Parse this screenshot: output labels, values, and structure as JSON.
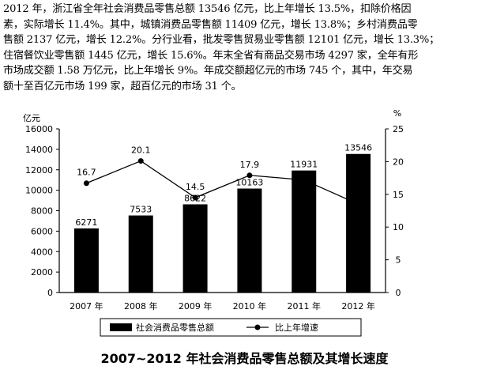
{
  "paragraph": [
    "2012 年，浙江省全年社会消费品零售总额 13546 亿元，比上年增长 13.5%，扣除价格因",
    "素，实际增长 11.4%。其中，城镇消费品零售额 11409 亿元，增长 13.8%；乡村消费品零",
    "售额 2137 亿元，增长 12.2%。分行业看，批发零售贸易业零售额 12101 亿元，增长 13.3%；",
    "住宿餐饮业零售额 1445 亿元，增长 15.6%。年末全省有商品交易市场 4297 家，全年有形",
    "市场成交额 1.58 万亿元，比上年增长 9%。年成交额超亿元的市场 745 个，其中，年交易",
    "额十至百亿元市场 199 家，超百亿元的市场 31 个。"
  ],
  "chart_data": {
    "type": "bar",
    "title": "2007~2012 年社会消费品零售总额及其增长速度",
    "categories": [
      "2007 年",
      "2008 年",
      "2009 年",
      "2010 年",
      "2011 年",
      "2012 年"
    ],
    "left_axis": {
      "unit": "亿元",
      "ylim": [
        0,
        16000
      ],
      "ticks": [
        0,
        2000,
        4000,
        6000,
        8000,
        10000,
        12000,
        14000,
        16000
      ]
    },
    "right_axis": {
      "unit": "%",
      "ylim": [
        0,
        25
      ],
      "ticks": [
        0,
        5,
        10,
        15,
        20,
        25
      ]
    },
    "series": [
      {
        "name": "社会消费品零售总额",
        "kind": "bar",
        "axis": "left",
        "color": "#000000",
        "values": [
          6271,
          7533,
          8622,
          10163,
          11931,
          13546
        ],
        "labels": [
          "6271",
          "7533",
          "8622",
          "10163",
          "11931",
          "13546"
        ]
      },
      {
        "name": "比上年增速",
        "kind": "line",
        "axis": "right",
        "color": "#000000",
        "values": [
          16.7,
          20.1,
          14.5,
          17.9,
          17.2,
          13.5
        ],
        "labels": [
          "16.7",
          "20.1",
          "14.5",
          "17.9",
          "",
          ""
        ]
      }
    ],
    "grid": false,
    "legend": "bottom"
  }
}
